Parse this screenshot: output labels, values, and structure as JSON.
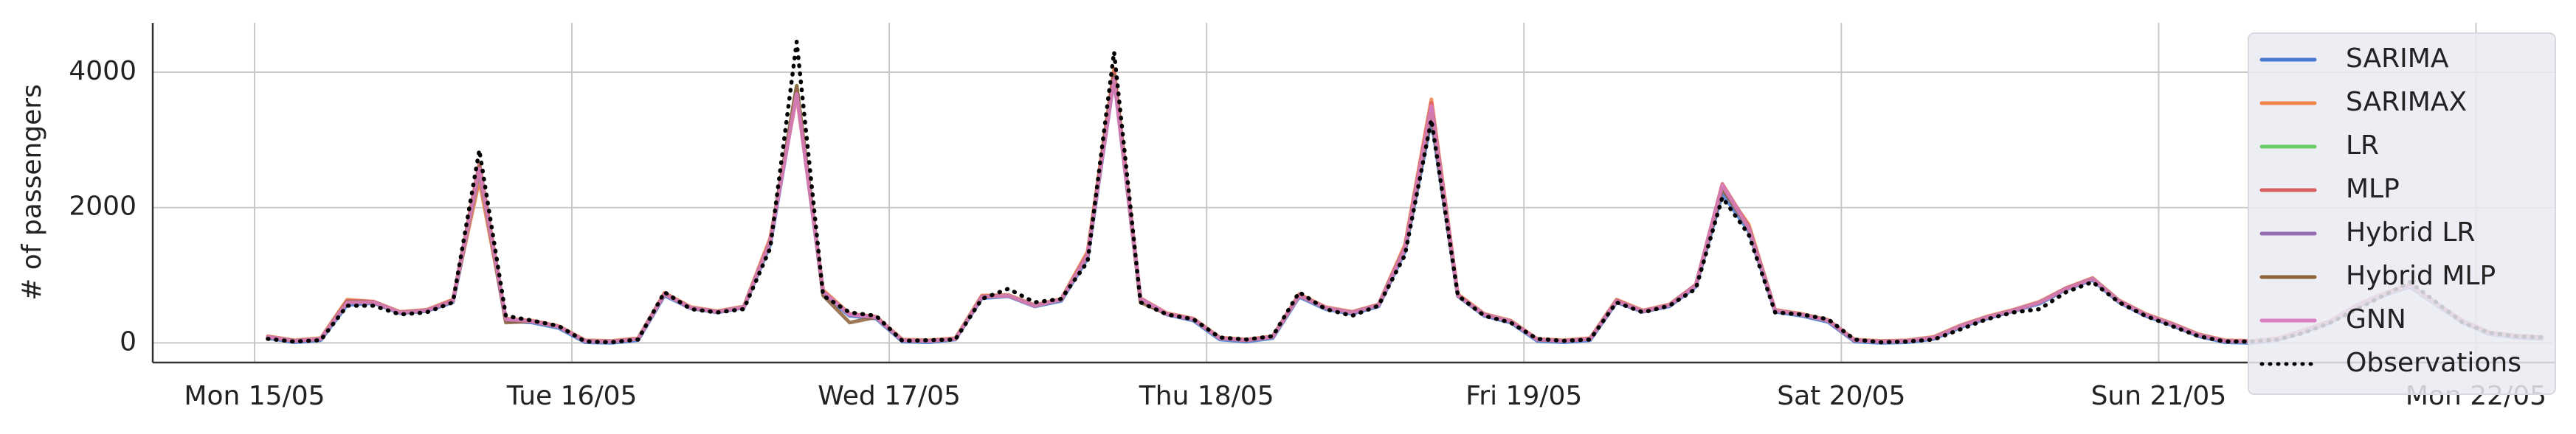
{
  "chart_data": {
    "type": "line",
    "y_label": "# of passengers",
    "x": [
      1,
      3,
      5,
      7,
      9,
      11,
      13,
      15,
      17,
      19,
      21,
      23,
      25,
      27,
      29,
      31,
      33,
      35,
      37,
      39,
      41,
      43,
      45,
      47,
      49,
      51,
      53,
      55,
      57,
      59,
      61,
      63,
      65,
      67,
      69,
      71,
      73,
      75,
      77,
      79,
      81,
      83,
      85,
      87,
      89,
      91,
      93,
      95,
      97,
      99,
      101,
      103,
      105,
      107,
      109,
      111,
      113,
      115,
      117,
      119,
      121,
      123,
      125,
      127,
      129,
      131,
      133,
      135,
      137,
      139,
      141,
      143,
      145,
      147,
      149,
      151,
      153,
      155,
      157,
      159,
      161,
      163,
      165,
      167,
      169,
      171,
      173
    ],
    "xlim": [
      -7.7,
      174
    ],
    "xticks": [
      {
        "value": 0,
        "label": "Mon 15/05"
      },
      {
        "value": 24,
        "label": "Tue 16/05"
      },
      {
        "value": 48,
        "label": "Wed 17/05"
      },
      {
        "value": 72,
        "label": "Thu 18/05"
      },
      {
        "value": 96,
        "label": "Fri 19/05"
      },
      {
        "value": 120,
        "label": "Sat 20/05"
      },
      {
        "value": 144,
        "label": "Sun 21/05"
      },
      {
        "value": 168,
        "label": "Mon 22/05"
      }
    ],
    "ylim": [
      -290,
      4730
    ],
    "yticks": [
      0,
      2000,
      4000
    ],
    "grid": true,
    "legend": "upper right",
    "series": [
      {
        "name": "SARIMA",
        "color": "#4878d0",
        "style": "solid",
        "values": [
          70,
          10,
          40,
          560,
          590,
          440,
          470,
          600,
          2450,
          330,
          300,
          220,
          10,
          0,
          40,
          700,
          510,
          450,
          520,
          1450,
          3700,
          720,
          400,
          360,
          20,
          10,
          50,
          660,
          690,
          540,
          620,
          1250,
          3900,
          630,
          420,
          330,
          50,
          20,
          70,
          680,
          500,
          430,
          540,
          1350,
          3300,
          690,
          400,
          300,
          30,
          10,
          40,
          600,
          460,
          540,
          830,
          2200,
          1650,
          460,
          400,
          310,
          20,
          0,
          10,
          60,
          230,
          360,
          470,
          580,
          790,
          930,
          600,
          400,
          260,
          100,
          10,
          0,
          40,
          160,
          300,
          530,
          700,
          830,
          560,
          300,
          130,
          80,
          60
        ]
      },
      {
        "name": "SARIMAX",
        "color": "#ee854a",
        "style": "solid",
        "values": [
          100,
          40,
          70,
          640,
          610,
          460,
          490,
          640,
          2400,
          360,
          330,
          250,
          40,
          30,
          70,
          740,
          530,
          470,
          540,
          1550,
          3650,
          780,
          430,
          390,
          50,
          40,
          70,
          700,
          710,
          560,
          650,
          1350,
          4050,
          660,
          440,
          360,
          80,
          50,
          100,
          720,
          530,
          460,
          570,
          1450,
          3600,
          720,
          430,
          330,
          60,
          40,
          70,
          640,
          480,
          570,
          860,
          2300,
          1750,
          490,
          430,
          340,
          50,
          30,
          40,
          90,
          260,
          390,
          490,
          610,
          810,
          960,
          630,
          430,
          290,
          130,
          40,
          30,
          70,
          190,
          330,
          560,
          730,
          860,
          590,
          330,
          160,
          110,
          90
        ]
      },
      {
        "name": "LR",
        "color": "#6acc64",
        "style": "solid",
        "values": [
          90,
          30,
          60,
          600,
          600,
          450,
          480,
          620,
          2550,
          350,
          320,
          240,
          30,
          20,
          60,
          720,
          520,
          460,
          530,
          1500,
          3800,
          750,
          420,
          380,
          40,
          30,
          60,
          680,
          700,
          550,
          640,
          1300,
          3950,
          650,
          430,
          350,
          70,
          40,
          90,
          700,
          520,
          450,
          560,
          1400,
          3450,
          700,
          420,
          320,
          50,
          30,
          60,
          620,
          470,
          560,
          850,
          2300,
          1700,
          480,
          420,
          330,
          40,
          20,
          30,
          80,
          250,
          380,
          480,
          600,
          800,
          950,
          620,
          420,
          280,
          120,
          30,
          20,
          60,
          180,
          320,
          550,
          720,
          850,
          580,
          320,
          150,
          100,
          80
        ]
      },
      {
        "name": "MLP",
        "color": "#d65f5f",
        "style": "solid",
        "values": [
          90,
          30,
          60,
          620,
          610,
          450,
          480,
          630,
          2650,
          350,
          320,
          240,
          30,
          20,
          60,
          730,
          520,
          460,
          530,
          1520,
          3750,
          760,
          420,
          380,
          40,
          30,
          60,
          690,
          700,
          550,
          640,
          1320,
          4000,
          660,
          430,
          350,
          70,
          40,
          90,
          710,
          520,
          450,
          560,
          1420,
          3550,
          710,
          420,
          320,
          50,
          30,
          60,
          630,
          470,
          560,
          860,
          2350,
          1720,
          480,
          420,
          330,
          40,
          20,
          30,
          80,
          250,
          380,
          480,
          600,
          810,
          950,
          620,
          420,
          280,
          120,
          30,
          20,
          60,
          180,
          320,
          550,
          720,
          850,
          580,
          320,
          150,
          100,
          80
        ]
      },
      {
        "name": "Hybrid LR",
        "color": "#956cb4",
        "style": "solid",
        "values": [
          90,
          30,
          60,
          600,
          600,
          450,
          480,
          620,
          2550,
          350,
          320,
          240,
          30,
          20,
          60,
          720,
          520,
          460,
          530,
          1500,
          3700,
          750,
          420,
          380,
          40,
          30,
          60,
          680,
          700,
          550,
          640,
          1300,
          3950,
          650,
          430,
          350,
          70,
          40,
          90,
          700,
          520,
          450,
          560,
          1400,
          3450,
          700,
          420,
          320,
          50,
          30,
          60,
          620,
          470,
          560,
          850,
          2300,
          1700,
          480,
          420,
          330,
          40,
          20,
          30,
          80,
          250,
          380,
          480,
          600,
          800,
          950,
          620,
          420,
          280,
          120,
          30,
          20,
          60,
          180,
          320,
          550,
          720,
          850,
          580,
          320,
          150,
          100,
          80
        ]
      },
      {
        "name": "Hybrid MLP",
        "color": "#8c613c",
        "style": "solid",
        "values": [
          90,
          30,
          60,
          610,
          600,
          450,
          480,
          620,
          2600,
          300,
          320,
          240,
          30,
          20,
          60,
          720,
          520,
          460,
          530,
          1500,
          3800,
          700,
          300,
          380,
          40,
          30,
          60,
          680,
          700,
          550,
          640,
          1300,
          3950,
          600,
          430,
          350,
          70,
          40,
          90,
          700,
          520,
          450,
          560,
          1400,
          3400,
          700,
          420,
          320,
          50,
          30,
          60,
          620,
          470,
          560,
          850,
          2280,
          1700,
          480,
          420,
          330,
          40,
          20,
          30,
          80,
          250,
          380,
          480,
          600,
          800,
          950,
          620,
          420,
          280,
          120,
          30,
          20,
          60,
          180,
          320,
          550,
          720,
          850,
          580,
          320,
          150,
          100,
          80
        ]
      },
      {
        "name": "GNN",
        "color": "#dc7ec0",
        "style": "solid",
        "values": [
          90,
          30,
          60,
          600,
          600,
          450,
          480,
          620,
          2580,
          350,
          320,
          240,
          30,
          20,
          60,
          720,
          520,
          460,
          530,
          1500,
          3680,
          750,
          420,
          380,
          40,
          30,
          60,
          680,
          700,
          550,
          640,
          1300,
          3900,
          650,
          430,
          350,
          70,
          40,
          90,
          700,
          520,
          450,
          560,
          1400,
          3500,
          700,
          420,
          320,
          50,
          30,
          60,
          620,
          470,
          560,
          850,
          2330,
          1700,
          480,
          420,
          330,
          40,
          20,
          30,
          80,
          250,
          380,
          480,
          600,
          800,
          950,
          620,
          420,
          280,
          120,
          30,
          20,
          60,
          180,
          320,
          550,
          720,
          850,
          580,
          320,
          150,
          100,
          80
        ]
      },
      {
        "name": "Observations",
        "color": "#000000",
        "style": "dotted",
        "values": [
          60,
          20,
          40,
          550,
          550,
          420,
          450,
          600,
          2850,
          400,
          330,
          250,
          20,
          10,
          50,
          750,
          500,
          450,
          500,
          1400,
          4450,
          700,
          450,
          400,
          30,
          40,
          50,
          650,
          800,
          600,
          650,
          1200,
          4300,
          600,
          420,
          350,
          80,
          50,
          100,
          750,
          500,
          400,
          550,
          1300,
          3300,
          700,
          400,
          300,
          60,
          30,
          50,
          600,
          450,
          550,
          800,
          2150,
          1600,
          450,
          420,
          350,
          50,
          10,
          20,
          50,
          200,
          350,
          450,
          500,
          750,
          900,
          600,
          400,
          250,
          100,
          20,
          20,
          50,
          150,
          300,
          500,
          700,
          900,
          600,
          300,
          150,
          100,
          80
        ]
      }
    ]
  }
}
